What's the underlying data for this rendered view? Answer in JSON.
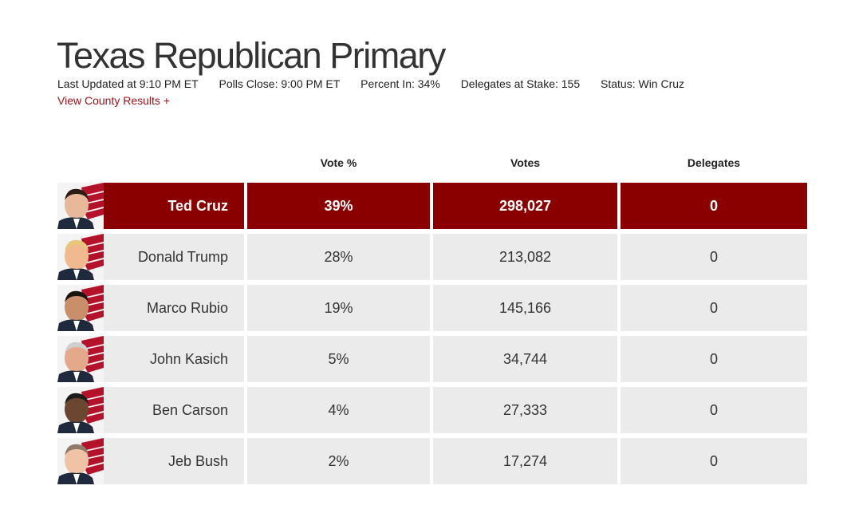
{
  "header": {
    "title": "Texas Republican Primary",
    "last_updated": "Last Updated at 9:10 PM ET",
    "polls_close": "Polls Close: 9:00 PM ET",
    "percent_in": "Percent In: 34%",
    "delegates_at_stake": "Delegates at Stake: 155",
    "status": "Status: Win Cruz",
    "county_link": "View County Results +"
  },
  "columns": {
    "vote_pct": "Vote %",
    "votes": "Votes",
    "delegates": "Delegates"
  },
  "candidates": [
    {
      "name": "Ted Cruz",
      "pct": "39%",
      "votes": "298,027",
      "delegates": "0",
      "winner": true
    },
    {
      "name": "Donald Trump",
      "pct": "28%",
      "votes": "213,082",
      "delegates": "0"
    },
    {
      "name": "Marco Rubio",
      "pct": "19%",
      "votes": "145,166",
      "delegates": "0"
    },
    {
      "name": "John Kasich",
      "pct": "5%",
      "votes": "34,744",
      "delegates": "0"
    },
    {
      "name": "Ben Carson",
      "pct": "4%",
      "votes": "27,333",
      "delegates": "0"
    },
    {
      "name": "Jeb Bush",
      "pct": "2%",
      "votes": "17,274",
      "delegates": "0"
    }
  ],
  "colors": {
    "winner_bg": "#8a0000",
    "row_bg": "#ebebeb",
    "link": "#a0111a"
  }
}
